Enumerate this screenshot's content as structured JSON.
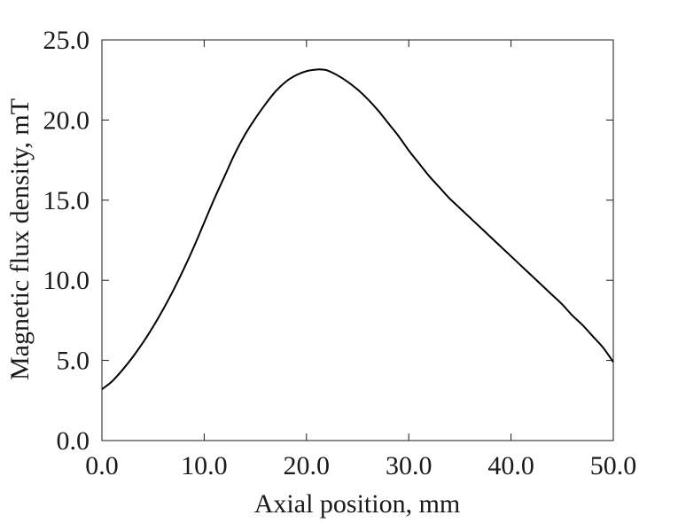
{
  "chart_data": {
    "type": "line",
    "title": "",
    "xlabel": "Axial position, mm",
    "ylabel": "Magnetic flux density, mT",
    "xlim": [
      0,
      50
    ],
    "ylim": [
      0,
      25
    ],
    "xticks": [
      "0.0",
      "10.0",
      "20.0",
      "30.0",
      "40.0",
      "50.0"
    ],
    "yticks": [
      "0.0",
      "5.0",
      "10.0",
      "15.0",
      "20.0",
      "25.0"
    ],
    "xtick_values": [
      0,
      10,
      20,
      30,
      40,
      50
    ],
    "ytick_values": [
      0,
      5,
      10,
      15,
      20,
      25
    ],
    "grid": false,
    "line_color": "#000000",
    "series": [
      {
        "x": [
          0,
          1,
          2,
          3,
          4,
          5,
          6,
          7,
          8,
          9,
          10,
          11,
          12,
          13,
          14,
          15,
          16,
          17,
          18,
          19,
          20,
          21,
          21.5,
          22,
          23,
          24,
          25,
          26,
          27,
          28,
          29,
          30,
          31,
          32,
          33,
          34,
          35,
          36,
          37,
          38,
          39,
          40,
          41,
          42,
          43,
          44,
          45,
          46,
          47,
          48,
          49,
          50
        ],
        "y": [
          3.2,
          3.7,
          4.4,
          5.2,
          6.1,
          7.1,
          8.2,
          9.4,
          10.7,
          12.1,
          13.6,
          15.1,
          16.5,
          17.9,
          19.1,
          20.1,
          21.0,
          21.8,
          22.4,
          22.8,
          23.05,
          23.15,
          23.15,
          23.1,
          22.8,
          22.4,
          21.9,
          21.3,
          20.6,
          19.8,
          19.0,
          18.1,
          17.3,
          16.5,
          15.8,
          15.1,
          14.5,
          13.9,
          13.3,
          12.7,
          12.1,
          11.5,
          10.9,
          10.3,
          9.7,
          9.1,
          8.5,
          7.8,
          7.2,
          6.5,
          5.8,
          4.9
        ]
      }
    ]
  }
}
